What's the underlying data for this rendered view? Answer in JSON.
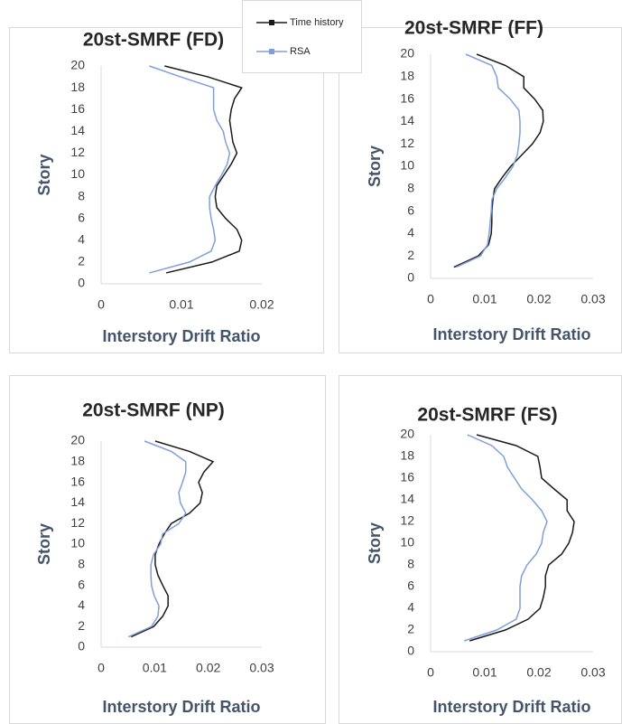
{
  "chart_data": [
    {
      "type": "line",
      "title": "20st-SMRF (FD)",
      "x_label": "Interstory Drift Ratio",
      "y_label": "Story",
      "y": [
        1,
        2,
        3,
        4,
        5,
        6,
        7,
        8,
        9,
        10,
        11,
        12,
        13,
        14,
        15,
        16,
        17,
        18,
        19,
        20
      ],
      "series": [
        {
          "name": "Time history",
          "color": "#1a1a1a",
          "values": [
            0.0081,
            0.0138,
            0.0172,
            0.0175,
            0.0169,
            0.0155,
            0.0144,
            0.0142,
            0.0144,
            0.0153,
            0.0162,
            0.0169,
            0.0164,
            0.0162,
            0.016,
            0.0162,
            0.0166,
            0.0175,
            0.0133,
            0.0079
          ]
        },
        {
          "name": "RSA",
          "color": "#7f9fd8",
          "values": [
            0.006,
            0.011,
            0.0137,
            0.0142,
            0.014,
            0.0137,
            0.0135,
            0.0135,
            0.0142,
            0.015,
            0.0157,
            0.016,
            0.0155,
            0.0152,
            0.0144,
            0.014,
            0.014,
            0.014,
            0.0099,
            0.006
          ]
        }
      ],
      "xlim": [
        0,
        0.02
      ],
      "xticks": [
        0,
        0.01,
        0.02
      ],
      "ylim": [
        0,
        20
      ],
      "yticks": [
        0,
        2,
        4,
        6,
        8,
        10,
        12,
        14,
        16,
        18,
        20
      ]
    },
    {
      "type": "line",
      "title": "20st-SMRF (FF)",
      "x_label": "Interstory Drift Ratio",
      "y_label": "Story",
      "y": [
        1,
        2,
        3,
        4,
        5,
        6,
        7,
        8,
        9,
        10,
        11,
        12,
        13,
        14,
        15,
        16,
        17,
        18,
        19,
        20
      ],
      "series": [
        {
          "color": "#1a1a1a",
          "values": [
            0.0043,
            0.0088,
            0.0107,
            0.0112,
            0.0113,
            0.0113,
            0.0115,
            0.0118,
            0.0132,
            0.0148,
            0.0168,
            0.0188,
            0.0202,
            0.0208,
            0.0207,
            0.0192,
            0.0172,
            0.0172,
            0.0138,
            0.0085
          ]
        },
        {
          "color": "#7f9fd8",
          "values": [
            0.0047,
            0.0092,
            0.0105,
            0.0108,
            0.011,
            0.0112,
            0.0113,
            0.0122,
            0.0138,
            0.0152,
            0.016,
            0.0163,
            0.0165,
            0.0165,
            0.0163,
            0.0147,
            0.0125,
            0.0122,
            0.0113,
            0.0065
          ]
        }
      ],
      "xlim": [
        0,
        0.03
      ],
      "xticks": [
        0,
        0.01,
        0.02,
        0.03
      ],
      "ylim": [
        0,
        20
      ],
      "yticks": [
        0,
        2,
        4,
        6,
        8,
        10,
        12,
        14,
        16,
        18,
        20
      ]
    },
    {
      "type": "line",
      "title": "20st-SMRF (NP)",
      "x_label": "Interstory Drift Ratio",
      "y_label": "Story",
      "y": [
        1,
        2,
        3,
        4,
        5,
        6,
        7,
        8,
        9,
        10,
        11,
        12,
        13,
        14,
        15,
        16,
        17,
        18,
        19,
        20
      ],
      "series": [
        {
          "color": "#1a1a1a",
          "values": [
            0.0056,
            0.0098,
            0.0115,
            0.0125,
            0.0125,
            0.0115,
            0.0106,
            0.0101,
            0.0101,
            0.0108,
            0.0118,
            0.0131,
            0.0165,
            0.0185,
            0.0189,
            0.0182,
            0.0192,
            0.0209,
            0.0165,
            0.0101
          ]
        },
        {
          "color": "#7f9fd8",
          "values": [
            0.0051,
            0.0094,
            0.0106,
            0.0108,
            0.0099,
            0.0094,
            0.0093,
            0.0093,
            0.0098,
            0.0111,
            0.0115,
            0.0145,
            0.0158,
            0.0148,
            0.0145,
            0.0152,
            0.0158,
            0.0158,
            0.0131,
            0.0081
          ]
        }
      ],
      "xlim": [
        0,
        0.03
      ],
      "xticks": [
        0,
        0.01,
        0.02,
        0.03
      ],
      "ylim": [
        0,
        20
      ],
      "yticks": [
        0,
        2,
        4,
        6,
        8,
        10,
        12,
        14,
        16,
        18,
        20
      ]
    },
    {
      "type": "line",
      "title": "20st-SMRF (FS)",
      "x_label": "Interstory Drift Ratio",
      "y_label": "Story",
      "y": [
        1,
        2,
        3,
        4,
        5,
        6,
        7,
        8,
        9,
        10,
        11,
        12,
        13,
        14,
        15,
        16,
        17,
        18,
        19,
        20
      ],
      "series": [
        {
          "color": "#1a1a1a",
          "values": [
            0.0072,
            0.0138,
            0.018,
            0.0202,
            0.0208,
            0.0212,
            0.0212,
            0.0218,
            0.0242,
            0.0255,
            0.0262,
            0.0265,
            0.0252,
            0.0252,
            0.0228,
            0.0205,
            0.0202,
            0.0198,
            0.0158,
            0.0085
          ]
        },
        {
          "color": "#7f9fd8",
          "values": [
            0.0062,
            0.0122,
            0.0158,
            0.0165,
            0.0165,
            0.0165,
            0.0168,
            0.0178,
            0.0195,
            0.0205,
            0.0208,
            0.0215,
            0.0205,
            0.0188,
            0.0168,
            0.0155,
            0.0142,
            0.0135,
            0.0113,
            0.0068
          ]
        }
      ],
      "xlim": [
        0,
        0.03
      ],
      "xticks": [
        0,
        0.01,
        0.02,
        0.03
      ],
      "ylim": [
        0,
        20
      ],
      "yticks": [
        0,
        2,
        4,
        6,
        8,
        10,
        12,
        14,
        16,
        18,
        20
      ]
    }
  ]
}
